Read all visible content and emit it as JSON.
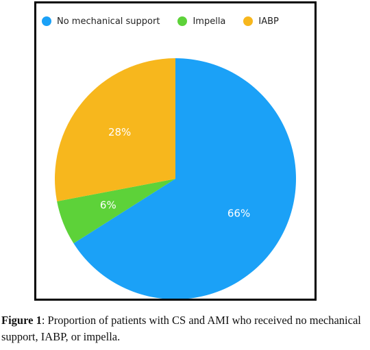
{
  "chart_data": {
    "type": "pie",
    "legend_position": "top-left",
    "slices": [
      {
        "label": "No mechanical support",
        "value": 66,
        "value_label": "66%",
        "color": "#1BA1F7"
      },
      {
        "label": "Impella",
        "value": 6,
        "value_label": "6%",
        "color": "#5DD239"
      },
      {
        "label": "IABP",
        "value": 28,
        "value_label": "28%",
        "color": "#F7B71D"
      }
    ]
  },
  "caption": {
    "label": "Figure 1",
    "text": ": Proportion of patients with CS and AMI who received no mechanical support, IABP, or impella."
  }
}
